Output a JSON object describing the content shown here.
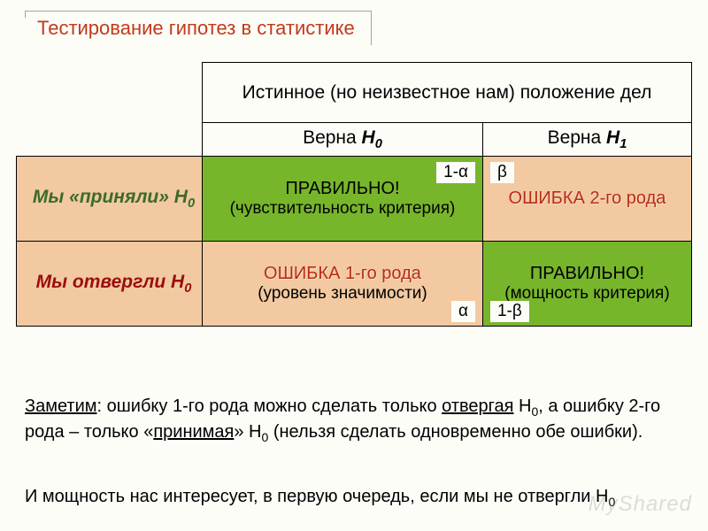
{
  "title": "Тестирование гипотез в статистике",
  "table": {
    "header_true_state": "Истинное (но неизвестное нам) положение дел",
    "sub_h0_prefix": "Верна ",
    "sub_h0_h": "H",
    "sub_h0_sub": "0",
    "sub_h1_prefix": "Верна ",
    "sub_h1_h": "H",
    "sub_h1_sub": "1",
    "row_accept_prefix": "Мы «приняли» ",
    "row_accept_h": "H",
    "row_accept_sub": "0",
    "row_reject_prefix": "Мы отвергли ",
    "row_reject_h": "H",
    "row_reject_sub": "0",
    "cell_accept_h0_line1": "ПРАВИЛЬНО!",
    "cell_accept_h0_line2": "(чувствительность критерия)",
    "cell_accept_h0_tag": "1-α",
    "cell_accept_h1_tag": "β",
    "cell_accept_h1_line1": "ОШИБКА 2-го рода",
    "cell_reject_h0_line1": "ОШИБКА 1-го рода",
    "cell_reject_h0_line2": "(уровень значимости)",
    "cell_reject_h0_tag": "α",
    "cell_reject_h1_tag": "1-β",
    "cell_reject_h1_line1": "ПРАВИЛЬНО!",
    "cell_reject_h1_line2": "(мощность критерия)"
  },
  "footer1_a": "Заметим",
  "footer1_b": ": ошибку 1-го рода можно сделать только ",
  "footer1_c": "отвергая",
  "footer1_d": " H",
  "footer1_e": "0",
  "footer1_f": ", а ошибку 2-го рода – только «",
  "footer1_g": "принимая",
  "footer1_h": "» H",
  "footer1_i": "0",
  "footer1_j": " (нельзя сделать одновременно обе ошибки).",
  "footer2_a": "И мощность нас интересует, в первую очередь, если мы не отвергли H",
  "footer2_b": "0",
  "watermark": "MyShared",
  "colors": {
    "title": "#c23a1a",
    "green_cell": "#77b62b",
    "orange_cell": "#f2c9a1",
    "error_text": "#b92d14",
    "accept_label": "#3b6b2a",
    "reject_label": "#9a0e0e",
    "background": "#fdfdf8",
    "border": "#000000"
  }
}
